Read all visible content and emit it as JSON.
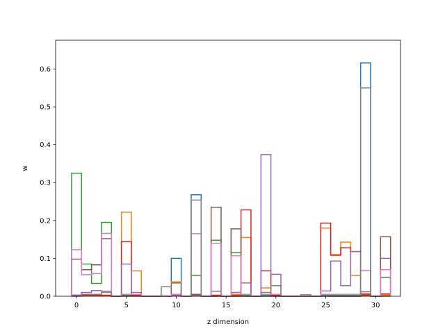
{
  "chart_data": {
    "type": "step-histogram",
    "xlabel": "z dimension",
    "ylabel": "w",
    "xlim": [
      -2.1,
      32.5
    ],
    "ylim": [
      0,
      0.676
    ],
    "xticks": [
      0,
      5,
      10,
      15,
      20,
      25,
      30
    ],
    "yticks": [
      0.0,
      0.1,
      0.2,
      0.3,
      0.4,
      0.5,
      0.6
    ],
    "ytick_labels": [
      "0.0",
      "0.1",
      "0.2",
      "0.3",
      "0.4",
      "0.5",
      "0.6"
    ],
    "grid": false,
    "bin_edges": [
      -0.5,
      0.5,
      1.5,
      2.5,
      3.5,
      4.5,
      5.5,
      6.5,
      7.5,
      8.5,
      9.5,
      10.5,
      11.5,
      12.5,
      13.5,
      14.5,
      15.5,
      16.5,
      17.5,
      18.5,
      19.5,
      20.5,
      21.5,
      22.5,
      23.5,
      24.5,
      25.5,
      26.5,
      27.5,
      28.5,
      29.5,
      30.5,
      31.5
    ],
    "series": [
      {
        "color": "#1f77b4",
        "values": [
          0.002,
          0.002,
          0.002,
          0.002,
          0.0,
          0.002,
          0.002,
          0.0,
          0.0,
          0.0,
          0.1,
          0.0,
          0.268,
          0.0,
          0.0,
          0.0,
          0.0,
          0.0,
          0.0,
          0.0,
          0.0,
          0.0,
          0.0,
          0.0,
          0.0,
          0.0,
          0.0,
          0.0,
          0.0,
          0.616,
          0.0,
          0.002
        ]
      },
      {
        "color": "#ff7f0e",
        "values": [
          0.003,
          0.003,
          0.003,
          0.003,
          0.0,
          0.222,
          0.067,
          0.0,
          0.0,
          0.0,
          0.038,
          0.0,
          0.003,
          0.0,
          0.003,
          0.0,
          0.005,
          0.155,
          0.0,
          0.022,
          0.003,
          0.0,
          0.0,
          0.0,
          0.0,
          0.18,
          0.11,
          0.143,
          0.055,
          0.007,
          0.0,
          0.003
        ]
      },
      {
        "color": "#2ca02c",
        "values": [
          0.325,
          0.085,
          0.034,
          0.195,
          0.0,
          0.003,
          0.003,
          0.0,
          0.0,
          0.0,
          0.003,
          0.0,
          0.055,
          0.0,
          0.148,
          0.0,
          0.115,
          0.003,
          0.0,
          0.003,
          0.003,
          0.0,
          0.0,
          0.0,
          0.0,
          0.003,
          0.003,
          0.003,
          0.003,
          0.003,
          0.0,
          0.05
        ]
      },
      {
        "color": "#d62728",
        "values": [
          0.002,
          0.002,
          0.002,
          0.002,
          0.0,
          0.144,
          0.002,
          0.0,
          0.0,
          0.0,
          0.002,
          0.0,
          0.002,
          0.0,
          0.002,
          0.0,
          0.002,
          0.228,
          0.0,
          0.067,
          0.002,
          0.0,
          0.0,
          0.0,
          0.0,
          0.193,
          0.108,
          0.128,
          0.118,
          0.002,
          0.0,
          0.006
        ]
      },
      {
        "color": "#9467bd",
        "values": [
          0.003,
          0.01,
          0.015,
          0.013,
          0.0,
          0.085,
          0.01,
          0.0,
          0.0,
          0.0,
          0.003,
          0.0,
          0.003,
          0.0,
          0.013,
          0.0,
          0.01,
          0.035,
          0.0,
          0.374,
          0.058,
          0.0,
          0.0,
          0.0,
          0.0,
          0.014,
          0.093,
          0.028,
          0.118,
          0.012,
          0.0,
          0.1
        ]
      },
      {
        "color": "#8c564b",
        "values": [
          0.098,
          0.07,
          0.083,
          0.152,
          0.0,
          0.005,
          0.005,
          0.0,
          0.0,
          0.0,
          0.035,
          0.0,
          0.005,
          0.0,
          0.235,
          0.0,
          0.178,
          0.005,
          0.0,
          0.005,
          0.005,
          0.0,
          0.0,
          0.0,
          0.0,
          0.005,
          0.005,
          0.005,
          0.005,
          0.005,
          0.0,
          0.157
        ]
      },
      {
        "color": "#e377c2",
        "values": [
          0.123,
          0.057,
          0.06,
          0.166,
          0.0,
          0.005,
          0.005,
          0.0,
          0.0,
          0.0,
          0.005,
          0.0,
          0.165,
          0.0,
          0.14,
          0.0,
          0.107,
          0.005,
          0.0,
          0.005,
          0.005,
          0.0,
          0.0,
          0.0,
          0.0,
          0.005,
          0.005,
          0.005,
          0.005,
          0.068,
          0.0,
          0.07
        ]
      },
      {
        "color": "#7f7f7f",
        "values": [
          0.0,
          0.005,
          0.005,
          0.01,
          0.0,
          0.0,
          0.0,
          0.0,
          0.0,
          0.025,
          0.035,
          0.0,
          0.254,
          0.0,
          0.0,
          0.0,
          0.0,
          0.0,
          0.0,
          0.01,
          0.028,
          0.0,
          0.0,
          0.004,
          0.0,
          0.0,
          0.0,
          0.0,
          0.0,
          0.55,
          0.0,
          0.0
        ]
      }
    ]
  }
}
